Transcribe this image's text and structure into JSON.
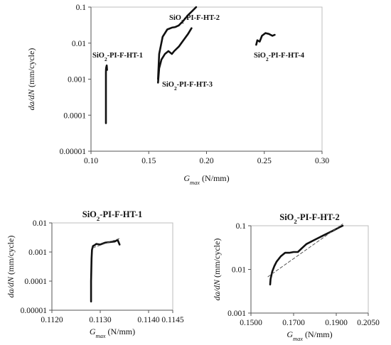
{
  "chart_data": [
    {
      "type": "line",
      "title": "",
      "xlabel": "G_max (N/mm)",
      "ylabel": "da/dN (mm/cycle)",
      "xscale": "linear",
      "yscale": "log",
      "xlim": [
        0.1,
        0.3
      ],
      "ylim": [
        1e-05,
        0.1
      ],
      "xticks": [
        "0.10",
        "0.15",
        "0.20",
        "0.25",
        "0.30"
      ],
      "yticks": [
        "0.00001",
        "0.0001",
        "0.001",
        "0.01",
        "0.1"
      ],
      "grid": false,
      "legend": "none",
      "annotations": [
        "SiO2-PI-F-HT-1",
        "SiO2-PI-F-HT-2",
        "SiO2-PI-F-HT-3",
        "SiO2-PI-F-HT-4"
      ],
      "series": [
        {
          "name": "SiO2-PI-F-HT-1",
          "x": [
            0.1129,
            0.1129,
            0.1129,
            0.1129,
            0.1129,
            0.113,
            0.1132,
            0.1136,
            0.1139
          ],
          "y": [
            6e-05,
            0.0001,
            0.0003,
            0.0008,
            0.0015,
            0.0019,
            0.0021,
            0.0024,
            0.0018
          ]
        },
        {
          "name": "SiO2-PI-F-HT-2",
          "x": [
            0.158,
            0.159,
            0.162,
            0.166,
            0.17,
            0.173,
            0.176,
            0.18,
            0.184,
            0.188,
            0.191
          ],
          "y": [
            0.001,
            0.005,
            0.015,
            0.024,
            0.027,
            0.028,
            0.031,
            0.042,
            0.06,
            0.08,
            0.1
          ]
        },
        {
          "name": "SiO2-PI-F-HT-3",
          "x": [
            0.158,
            0.159,
            0.161,
            0.164,
            0.167,
            0.17,
            0.172,
            0.176,
            0.18,
            0.184,
            0.187
          ],
          "y": [
            0.0008,
            0.002,
            0.0035,
            0.005,
            0.006,
            0.005,
            0.006,
            0.008,
            0.012,
            0.018,
            0.026
          ]
        },
        {
          "name": "SiO2-PI-F-HT-4",
          "x": [
            0.243,
            0.244,
            0.246,
            0.248,
            0.251,
            0.254,
            0.257,
            0.259
          ],
          "y": [
            0.009,
            0.012,
            0.011,
            0.016,
            0.019,
            0.018,
            0.016,
            0.017
          ]
        }
      ]
    },
    {
      "type": "line",
      "title": "SiO2-PI-F-HT-1",
      "xlabel": "G_max (N/mm)",
      "ylabel": "da/dN (mm/cycle)",
      "xscale": "linear",
      "yscale": "log",
      "xlim": [
        0.112,
        0.1145
      ],
      "ylim": [
        1e-05,
        0.01
      ],
      "xticks": [
        "0.1120",
        "0.1130",
        "0.1140",
        "0.1145"
      ],
      "yticks": [
        "0.00001",
        "0.0001",
        "0.001",
        "0.01"
      ],
      "grid": false,
      "legend": "none",
      "series": [
        {
          "name": "",
          "x": [
            0.11281,
            0.11281,
            0.11282,
            0.11283,
            0.11285,
            0.11288,
            0.11292,
            0.113,
            0.1131,
            0.1132,
            0.1133,
            0.11336,
            0.1134
          ],
          "y": [
            2e-05,
            0.0001,
            0.0006,
            0.0012,
            0.0016,
            0.0017,
            0.0019,
            0.0018,
            0.0021,
            0.0022,
            0.0023,
            0.0026,
            0.0018
          ]
        },
        {
          "name": "trend",
          "dashed": true,
          "x": [
            0.11285,
            0.11342
          ],
          "y": [
            0.0014,
            0.003
          ]
        }
      ]
    },
    {
      "type": "line",
      "title": "SiO2-PI-F-HT-2",
      "xlabel": "G_max (N/mm)",
      "ylabel": "da/dN (mm/cycle)",
      "xscale": "linear",
      "yscale": "log",
      "xlim": [
        0.15,
        0.205
      ],
      "ylim": [
        0.001,
        0.1
      ],
      "xticks": [
        "0.1500",
        "0.1700",
        "0.1900",
        "0.2050"
      ],
      "yticks": [
        "0.001",
        "0.01",
        "0.1"
      ],
      "grid": false,
      "legend": "none",
      "series": [
        {
          "name": "",
          "x": [
            0.159,
            0.1592,
            0.16,
            0.161,
            0.162,
            0.164,
            0.166,
            0.168,
            0.17,
            0.172,
            0.174,
            0.176,
            0.18,
            0.184,
            0.188,
            0.192,
            0.193
          ],
          "y": [
            0.0045,
            0.006,
            0.009,
            0.012,
            0.015,
            0.02,
            0.024,
            0.024,
            0.025,
            0.025,
            0.031,
            0.038,
            0.048,
            0.06,
            0.075,
            0.095,
            0.1
          ]
        },
        {
          "name": "trend",
          "dashed": true,
          "x": [
            0.158,
            0.193
          ],
          "y": [
            0.0068,
            0.11
          ]
        }
      ]
    }
  ]
}
